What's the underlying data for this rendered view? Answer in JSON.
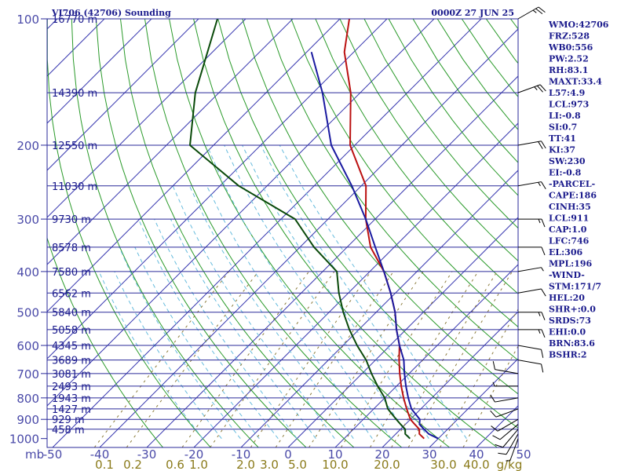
{
  "header": {
    "station": "VI706 (42706) Sounding",
    "time": "0000Z 27 JUN 25"
  },
  "colors": {
    "isobar": "#2a2a9a",
    "isotherm": "#3a3ab0",
    "dry_adiabat": "#2a9a2a",
    "moist_adiabat": "#66bbdd",
    "mixing_ratio": "#8a7a3a",
    "temperature": "#bb1111",
    "dewpoint": "#0a4a0a",
    "parcel": "#1a1aa0",
    "wind": "#000000"
  },
  "indices": [
    "WMO:42706",
    "FRZ:528",
    "WB0:556",
    "PW:2.52",
    "RH:83.1",
    "MAXT:33.4",
    "L57:4.9",
    "LCL:973",
    "LI:-0.8",
    "SI:0.7",
    "TT:41",
    "KI:37",
    "SW:230",
    "EI:-0.8",
    "-PARCEL-",
    "CAPE:186",
    "CINH:35",
    "LCL:911",
    "CAP:1.0",
    "LFC:746",
    "EL:306",
    "MPL:196",
    "-WIND-",
    "STM:171/7",
    "HEL:20",
    "SHR+:0.0",
    "SRDS:73",
    "EHI:0.0",
    "BRN:83.6",
    "BSHR:2"
  ],
  "chart_data": {
    "type": "line",
    "title": "VI706 (42706) Sounding",
    "subtitle": "0000Z 27 JUN 25",
    "xlabel": "",
    "ylabel": "mb",
    "xlim": [
      -50,
      50
    ],
    "ylim": [
      1000,
      100
    ],
    "pressure_ticks": [
      100,
      200,
      300,
      400,
      500,
      600,
      700,
      800,
      900,
      1000
    ],
    "pressure_tick_labels": [
      "100",
      "200",
      "300",
      "400",
      "500",
      "600",
      "700",
      "800",
      "900",
      "1000"
    ],
    "y_unit_label": "mb",
    "temperature_ticks": [
      -50,
      -40,
      -30,
      -20,
      -10,
      0,
      10,
      20,
      30,
      40,
      50
    ],
    "temperature_tick_labels": [
      "-50",
      "-40",
      "-30",
      "-20",
      "-10",
      "0",
      "10",
      "20",
      "30",
      "40",
      "50"
    ],
    "mixing_ratio_labels": [
      {
        "t": -39,
        "label": "0.1"
      },
      {
        "t": -33,
        "label": "0.2"
      },
      {
        "t": -24,
        "label": "0.6"
      },
      {
        "t": -19,
        "label": "1.0"
      },
      {
        "t": -9,
        "label": "2.0"
      },
      {
        "t": -4,
        "label": "3.0"
      },
      {
        "t": 2,
        "label": "5.0"
      },
      {
        "t": 10,
        "label": "10.0"
      },
      {
        "t": 21,
        "label": "20.0"
      },
      {
        "t": 33,
        "label": "30.0"
      },
      {
        "t": 40,
        "label": "40.0"
      },
      {
        "t": 47,
        "label": "g/kg"
      }
    ],
    "height_labels": [
      {
        "p": 100,
        "label": "16770 m"
      },
      {
        "p": 150,
        "label": "14390 m"
      },
      {
        "p": 200,
        "label": "12550 m"
      },
      {
        "p": 250,
        "label": "11030 m"
      },
      {
        "p": 300,
        "label": "9730 m"
      },
      {
        "p": 350,
        "label": "8578 m"
      },
      {
        "p": 400,
        "label": "7580 m"
      },
      {
        "p": 450,
        "label": "6562 m"
      },
      {
        "p": 500,
        "label": "5840 m"
      },
      {
        "p": 550,
        "label": "5058 m"
      },
      {
        "p": 600,
        "label": "4345 m"
      },
      {
        "p": 650,
        "label": "3689 m"
      },
      {
        "p": 700,
        "label": "3081 m"
      },
      {
        "p": 750,
        "label": "2493 m"
      },
      {
        "p": 800,
        "label": "1943 m"
      },
      {
        "p": 850,
        "label": "1427 m"
      },
      {
        "p": 900,
        "label": "929 m"
      },
      {
        "p": 950,
        "label": "458 m"
      }
    ],
    "series": [
      {
        "key": "temperature",
        "points": [
          [
            1000,
            27
          ],
          [
            975,
            25
          ],
          [
            950,
            24
          ],
          [
            925,
            22
          ],
          [
            900,
            20
          ],
          [
            850,
            17
          ],
          [
            800,
            14
          ],
          [
            750,
            11
          ],
          [
            700,
            8
          ],
          [
            650,
            5
          ],
          [
            600,
            2
          ],
          [
            550,
            -2
          ],
          [
            500,
            -6
          ],
          [
            450,
            -11
          ],
          [
            400,
            -17
          ],
          [
            350,
            -25
          ],
          [
            300,
            -32
          ],
          [
            250,
            -39
          ],
          [
            200,
            -51
          ],
          [
            150,
            -62
          ],
          [
            120,
            -72
          ],
          [
            100,
            -78
          ]
        ]
      },
      {
        "key": "dewpoint",
        "points": [
          [
            1000,
            24
          ],
          [
            975,
            22
          ],
          [
            950,
            21
          ],
          [
            925,
            19
          ],
          [
            900,
            17
          ],
          [
            850,
            13
          ],
          [
            800,
            10
          ],
          [
            750,
            6
          ],
          [
            700,
            2
          ],
          [
            650,
            -2
          ],
          [
            600,
            -7
          ],
          [
            550,
            -12
          ],
          [
            500,
            -17
          ],
          [
            450,
            -22
          ],
          [
            400,
            -27
          ],
          [
            350,
            -37
          ],
          [
            300,
            -47
          ],
          [
            250,
            -66
          ],
          [
            200,
            -85
          ],
          [
            150,
            -95
          ],
          [
            100,
            -106
          ]
        ]
      },
      {
        "key": "parcel",
        "points": [
          [
            1000,
            30
          ],
          [
            975,
            27
          ],
          [
            950,
            25
          ],
          [
            925,
            23
          ],
          [
            900,
            22
          ],
          [
            850,
            18
          ],
          [
            800,
            15
          ],
          [
            750,
            12
          ],
          [
            700,
            9
          ],
          [
            650,
            6
          ],
          [
            600,
            2
          ],
          [
            550,
            -2
          ],
          [
            500,
            -6
          ],
          [
            450,
            -11
          ],
          [
            400,
            -17
          ],
          [
            350,
            -24
          ],
          [
            300,
            -32
          ],
          [
            250,
            -42
          ],
          [
            200,
            -55
          ],
          [
            150,
            -68
          ],
          [
            120,
            -79
          ]
        ]
      }
    ],
    "wind_barbs": [
      {
        "p": 1000,
        "dir": 200,
        "kt": 5
      },
      {
        "p": 975,
        "dir": 210,
        "kt": 10
      },
      {
        "p": 950,
        "dir": 220,
        "kt": 10
      },
      {
        "p": 925,
        "dir": 230,
        "kt": 10
      },
      {
        "p": 900,
        "dir": 240,
        "kt": 10
      },
      {
        "p": 850,
        "dir": 250,
        "kt": 10
      },
      {
        "p": 800,
        "dir": 260,
        "kt": 10
      },
      {
        "p": 750,
        "dir": 270,
        "kt": 5
      },
      {
        "p": 700,
        "dir": 280,
        "kt": 10
      },
      {
        "p": 650,
        "dir": 100,
        "kt": 10
      },
      {
        "p": 600,
        "dir": 100,
        "kt": 10
      },
      {
        "p": 550,
        "dir": 90,
        "kt": 15
      },
      {
        "p": 500,
        "dir": 90,
        "kt": 15
      },
      {
        "p": 450,
        "dir": 80,
        "kt": 10
      },
      {
        "p": 400,
        "dir": 80,
        "kt": 5
      },
      {
        "p": 350,
        "dir": 90,
        "kt": 10
      },
      {
        "p": 300,
        "dir": 90,
        "kt": 15
      },
      {
        "p": 250,
        "dir": 80,
        "kt": 15
      },
      {
        "p": 200,
        "dir": 80,
        "kt": 20
      },
      {
        "p": 150,
        "dir": 70,
        "kt": 25
      },
      {
        "p": 100,
        "dir": 60,
        "kt": 25
      }
    ]
  }
}
